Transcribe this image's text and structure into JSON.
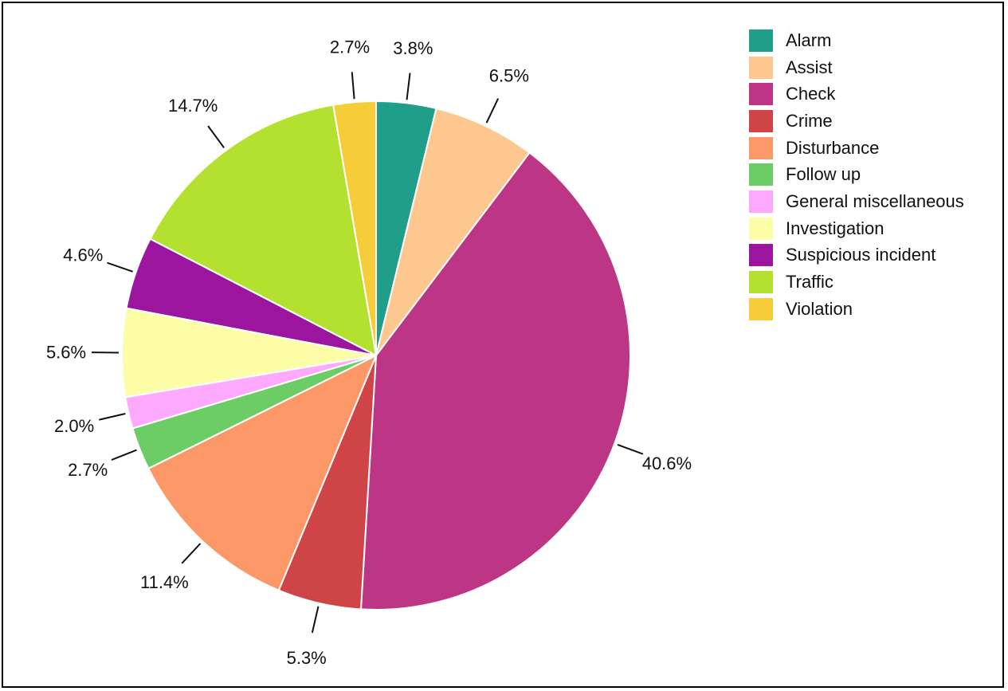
{
  "chart_data": {
    "type": "pie",
    "title": "",
    "start_angle_deg": 0,
    "direction": "clockwise",
    "legend_position": "top-right",
    "slices": [
      {
        "name": "Alarm",
        "value": 3.8,
        "label": "3.8%",
        "color": "#1f9e89"
      },
      {
        "name": "Assist",
        "value": 6.5,
        "label": "6.5%",
        "color": "#fdc890"
      },
      {
        "name": "Check",
        "value": 40.6,
        "label": "40.6%",
        "color": "#bc3685"
      },
      {
        "name": "Crime",
        "value": 5.3,
        "label": "5.3%",
        "color": "#cf4446"
      },
      {
        "name": "Disturbance",
        "value": 11.4,
        "label": "11.4%",
        "color": "#fc9867"
      },
      {
        "name": "Follow up",
        "value": 2.7,
        "label": "2.7%",
        "color": "#6ccd66"
      },
      {
        "name": "General miscellaneous",
        "value": 2.0,
        "label": "2.0%",
        "color": "#fda9fd"
      },
      {
        "name": "Investigation",
        "value": 5.6,
        "label": "5.6%",
        "color": "#fcfda6"
      },
      {
        "name": "Suspicious incident",
        "value": 4.6,
        "label": "4.6%",
        "color": "#9b159e"
      },
      {
        "name": "Traffic",
        "value": 14.7,
        "label": "14.7%",
        "color": "#b4e02f"
      },
      {
        "name": "Violation",
        "value": 2.7,
        "label": "2.7%",
        "color": "#f6cd38"
      }
    ]
  }
}
